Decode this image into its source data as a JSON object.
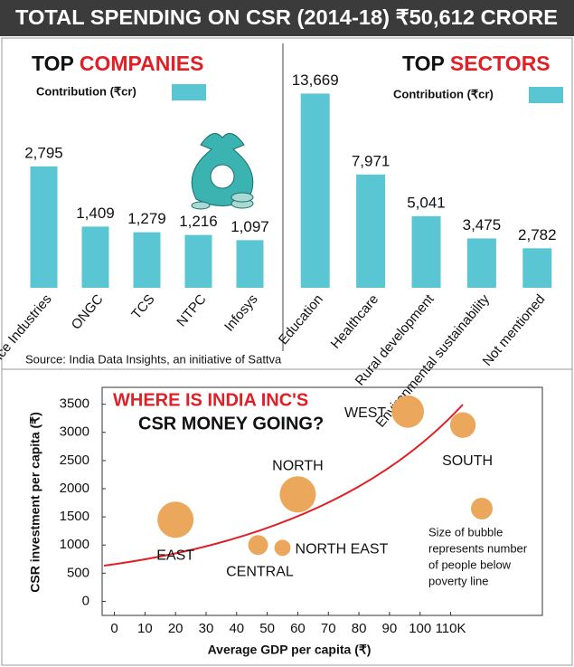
{
  "title": "TOTAL SPENDING ON CSR (2014-18) ₹50,612 CRORE",
  "source": "Source: India Data Insights, an initiative of Sattva",
  "chart_data": [
    {
      "type": "bar",
      "title": [
        "TOP",
        "COMPANIES"
      ],
      "legend_label": "Contribution (₹cr)",
      "color": "#5bc6d3",
      "categories": [
        "Reliance Industries",
        "ONGC",
        "TCS",
        "NTPC",
        "Infosys"
      ],
      "values": [
        2795,
        1409,
        1279,
        1216,
        1097
      ],
      "value_labels": [
        "2,795",
        "1,409",
        "1,279",
        "1,216",
        "1,097"
      ]
    },
    {
      "type": "bar",
      "title": [
        "TOP",
        "SECTORS"
      ],
      "legend_label": "Contribution (₹cr)",
      "color": "#5bc6d3",
      "categories": [
        "Education",
        "Healthcare",
        "Rural development",
        "Environmental sustainability",
        "Not mentioned"
      ],
      "values": [
        13669,
        7971,
        5041,
        3475,
        2782
      ],
      "value_labels": [
        "13,669",
        "7,971",
        "5,041",
        "3,475",
        "2,782"
      ]
    },
    {
      "type": "bubble",
      "title": [
        "WHERE IS INDIA INC'S",
        "CSR MONEY GOING?"
      ],
      "xlabel": "Average GDP per capita (₹)",
      "ylabel": "CSR investment per capita (₹)",
      "color": "#eba85c",
      "labels": [
        "EAST",
        "CENTRAL",
        "NORTH EAST",
        "NORTH",
        "WEST",
        "SOUTH"
      ],
      "x": [
        20,
        47,
        55,
        60,
        96,
        114
      ],
      "values": [
        1450,
        1000,
        950,
        1900,
        3370,
        3130
      ],
      "sizes": [
        100,
        30,
        20,
        100,
        80,
        50
      ],
      "xlim": [
        -4,
        140
      ],
      "ylim": [
        -250,
        3800
      ],
      "xticks": [
        0,
        10,
        20,
        30,
        40,
        50,
        60,
        70,
        80,
        90,
        100,
        {
          "value": 110,
          "label": "110K"
        }
      ],
      "yticks": [
        0,
        500,
        1000,
        1500,
        2000,
        2500,
        3000,
        3500
      ],
      "note": [
        "Size of bubble",
        "represents number",
        "of people below",
        "poverty line"
      ]
    }
  ]
}
